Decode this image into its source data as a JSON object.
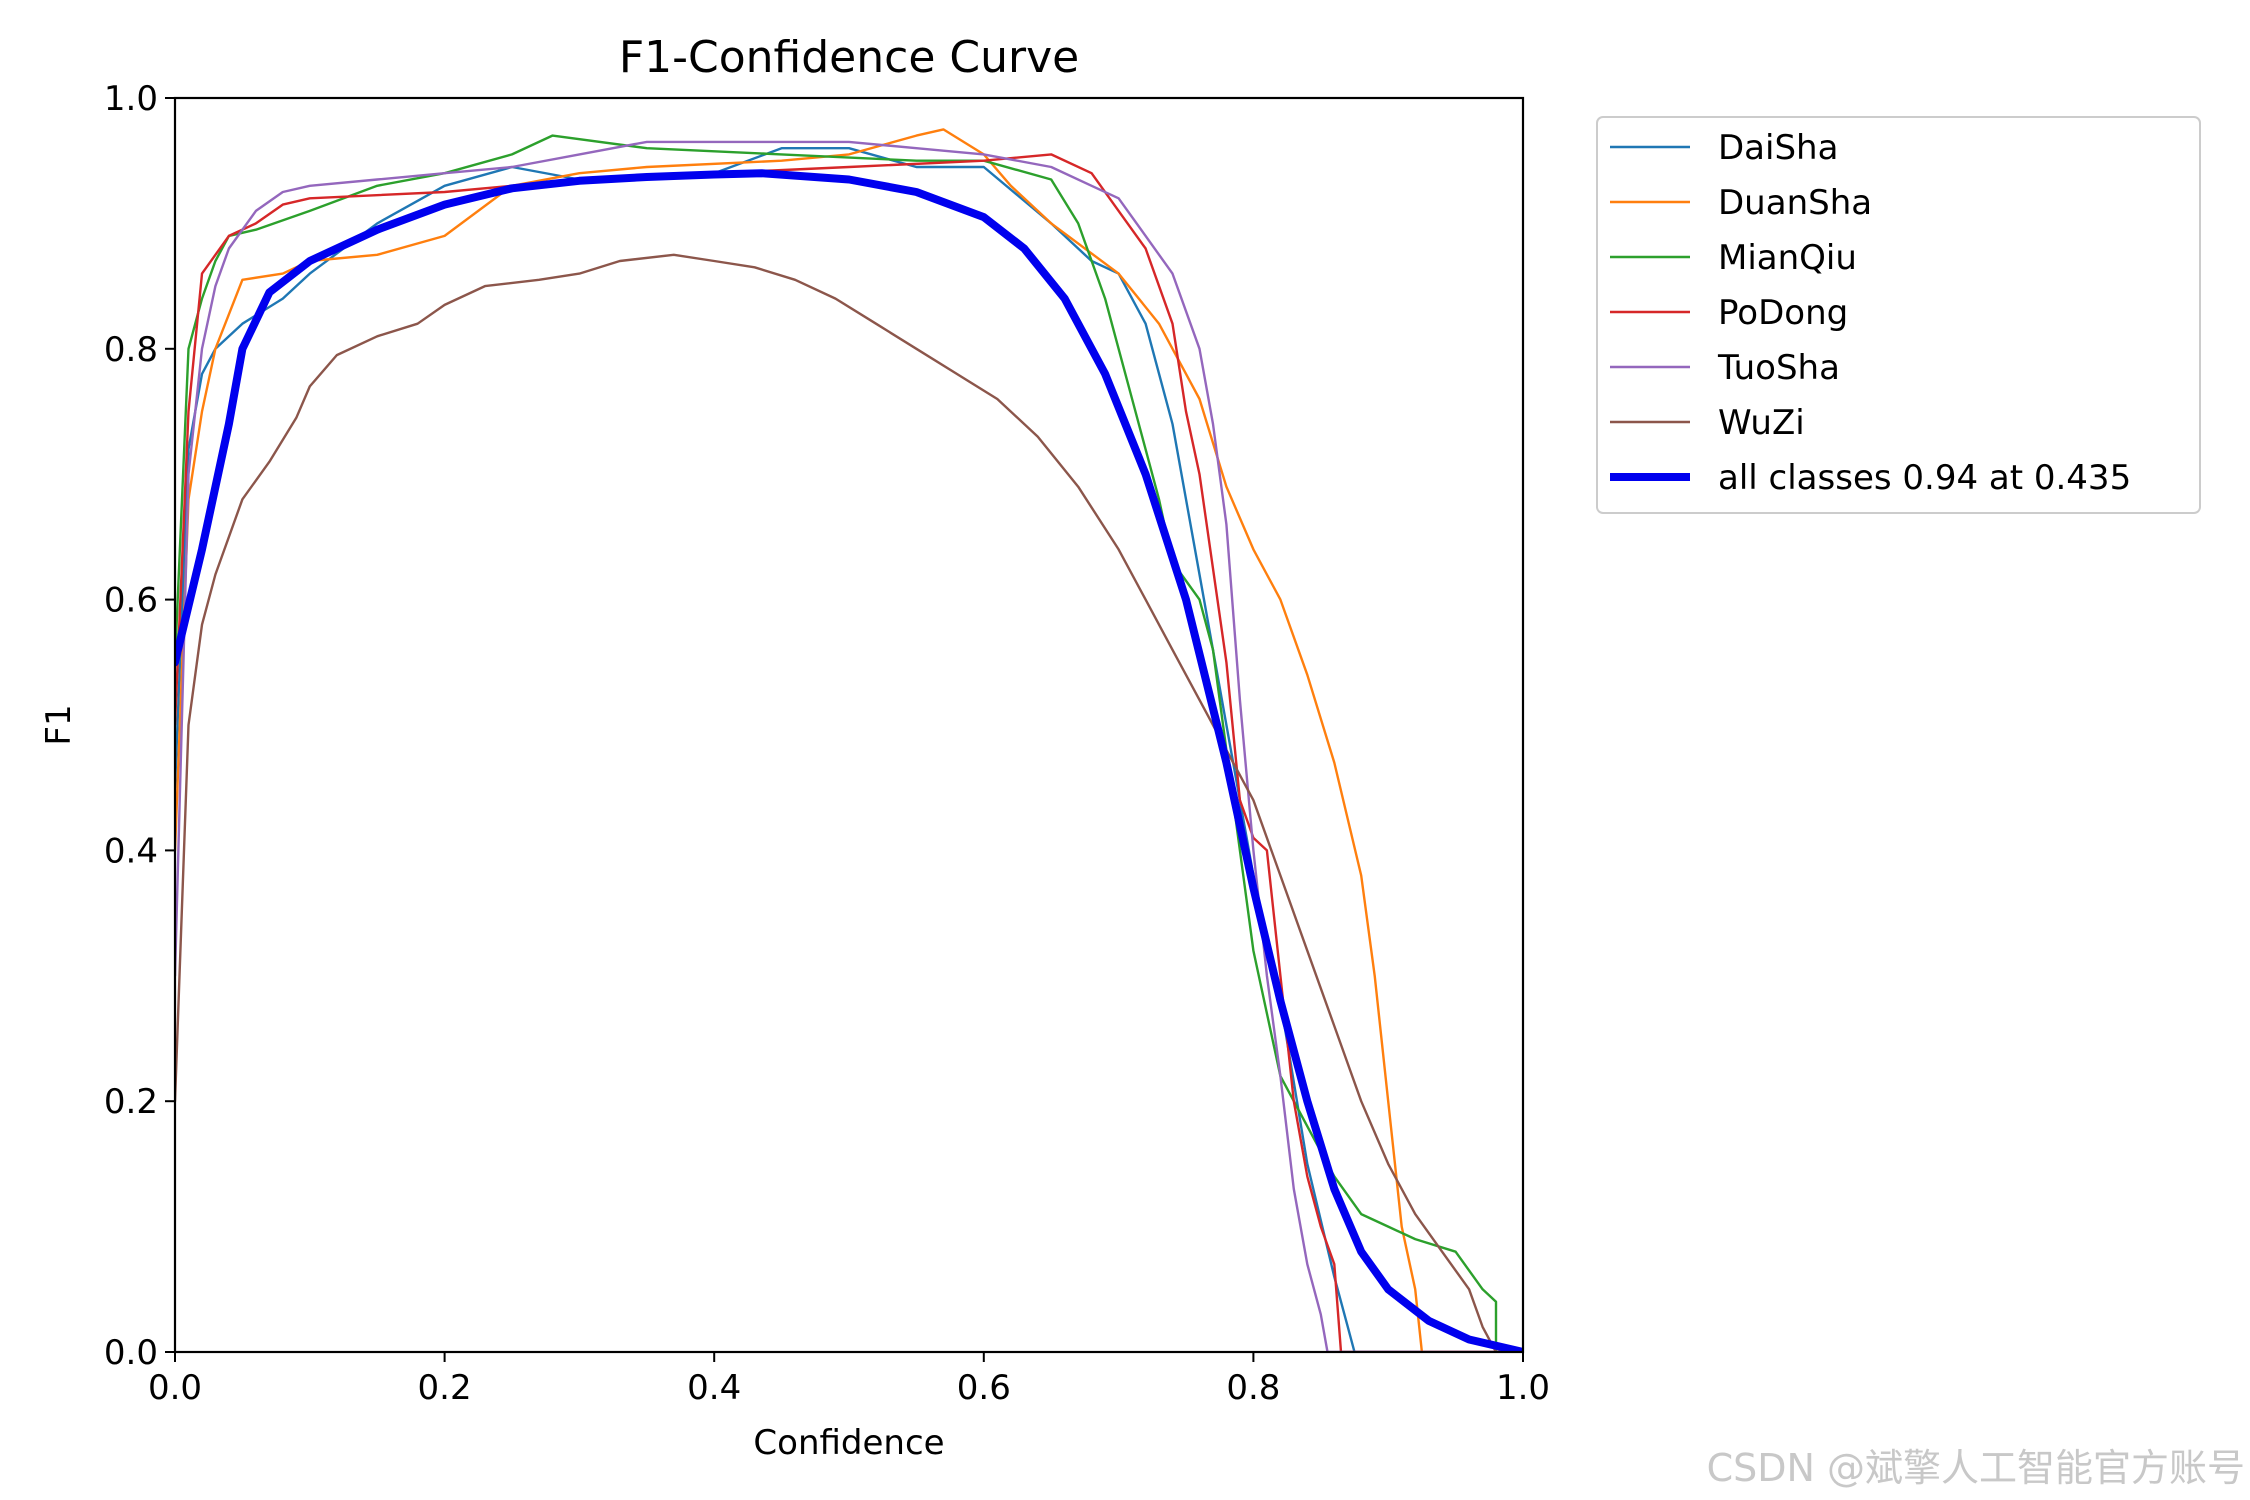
{
  "chart_data": {
    "type": "line",
    "title": "F1-Confidence Curve",
    "xlabel": "Confidence",
    "ylabel": "F1",
    "xlim": [
      0,
      1
    ],
    "ylim": [
      0,
      1
    ],
    "xticks": [
      "0.0",
      "0.2",
      "0.4",
      "0.6",
      "0.8",
      "1.0"
    ],
    "yticks": [
      "0.0",
      "0.2",
      "0.4",
      "0.6",
      "0.8",
      "1.0"
    ],
    "legend_position": "outside-right",
    "series": [
      {
        "name": "DaiSha",
        "color": "#1f77b4",
        "points": [
          [
            0,
            0.45
          ],
          [
            0.01,
            0.72
          ],
          [
            0.02,
            0.78
          ],
          [
            0.03,
            0.8
          ],
          [
            0.05,
            0.82
          ],
          [
            0.08,
            0.84
          ],
          [
            0.1,
            0.86
          ],
          [
            0.15,
            0.9
          ],
          [
            0.2,
            0.93
          ],
          [
            0.25,
            0.945
          ],
          [
            0.3,
            0.935
          ],
          [
            0.4,
            0.94
          ],
          [
            0.45,
            0.96
          ],
          [
            0.5,
            0.96
          ],
          [
            0.55,
            0.945
          ],
          [
            0.6,
            0.945
          ],
          [
            0.65,
            0.9
          ],
          [
            0.68,
            0.87
          ],
          [
            0.7,
            0.86
          ],
          [
            0.72,
            0.82
          ],
          [
            0.74,
            0.74
          ],
          [
            0.76,
            0.62
          ],
          [
            0.78,
            0.5
          ],
          [
            0.8,
            0.38
          ],
          [
            0.82,
            0.28
          ],
          [
            0.84,
            0.15
          ],
          [
            0.86,
            0.06
          ],
          [
            0.87,
            0.02
          ],
          [
            0.875,
            0.0
          ],
          [
            1,
            0.0
          ]
        ]
      },
      {
        "name": "DuanSha",
        "color": "#ff7f0e",
        "points": [
          [
            0,
            0.4
          ],
          [
            0.01,
            0.68
          ],
          [
            0.02,
            0.75
          ],
          [
            0.03,
            0.8
          ],
          [
            0.05,
            0.855
          ],
          [
            0.08,
            0.86
          ],
          [
            0.1,
            0.87
          ],
          [
            0.15,
            0.875
          ],
          [
            0.2,
            0.89
          ],
          [
            0.25,
            0.93
          ],
          [
            0.3,
            0.94
          ],
          [
            0.35,
            0.945
          ],
          [
            0.45,
            0.95
          ],
          [
            0.5,
            0.955
          ],
          [
            0.55,
            0.97
          ],
          [
            0.57,
            0.975
          ],
          [
            0.6,
            0.955
          ],
          [
            0.62,
            0.93
          ],
          [
            0.65,
            0.9
          ],
          [
            0.7,
            0.86
          ],
          [
            0.73,
            0.82
          ],
          [
            0.76,
            0.76
          ],
          [
            0.78,
            0.69
          ],
          [
            0.8,
            0.64
          ],
          [
            0.82,
            0.6
          ],
          [
            0.84,
            0.54
          ],
          [
            0.86,
            0.47
          ],
          [
            0.88,
            0.38
          ],
          [
            0.89,
            0.3
          ],
          [
            0.9,
            0.2
          ],
          [
            0.91,
            0.1
          ],
          [
            0.92,
            0.05
          ],
          [
            0.925,
            0.0
          ],
          [
            1,
            0.0
          ]
        ]
      },
      {
        "name": "MianQiu",
        "color": "#2ca02c",
        "points": [
          [
            0,
            0.55
          ],
          [
            0.01,
            0.8
          ],
          [
            0.02,
            0.84
          ],
          [
            0.03,
            0.87
          ],
          [
            0.04,
            0.89
          ],
          [
            0.06,
            0.895
          ],
          [
            0.1,
            0.91
          ],
          [
            0.15,
            0.93
          ],
          [
            0.2,
            0.94
          ],
          [
            0.25,
            0.955
          ],
          [
            0.28,
            0.97
          ],
          [
            0.35,
            0.96
          ],
          [
            0.45,
            0.955
          ],
          [
            0.55,
            0.95
          ],
          [
            0.6,
            0.95
          ],
          [
            0.65,
            0.935
          ],
          [
            0.67,
            0.9
          ],
          [
            0.69,
            0.84
          ],
          [
            0.71,
            0.76
          ],
          [
            0.73,
            0.68
          ],
          [
            0.74,
            0.63
          ],
          [
            0.76,
            0.6
          ],
          [
            0.77,
            0.56
          ],
          [
            0.78,
            0.48
          ],
          [
            0.8,
            0.32
          ],
          [
            0.82,
            0.22
          ],
          [
            0.84,
            0.18
          ],
          [
            0.86,
            0.14
          ],
          [
            0.88,
            0.11
          ],
          [
            0.9,
            0.1
          ],
          [
            0.92,
            0.09
          ],
          [
            0.95,
            0.08
          ],
          [
            0.97,
            0.05
          ],
          [
            0.98,
            0.04
          ],
          [
            0.98,
            0.0
          ],
          [
            1,
            0.0
          ]
        ]
      },
      {
        "name": "PoDong",
        "color": "#d62728",
        "points": [
          [
            0,
            0.5
          ],
          [
            0.01,
            0.75
          ],
          [
            0.02,
            0.86
          ],
          [
            0.03,
            0.875
          ],
          [
            0.04,
            0.89
          ],
          [
            0.06,
            0.9
          ],
          [
            0.08,
            0.915
          ],
          [
            0.1,
            0.92
          ],
          [
            0.2,
            0.925
          ],
          [
            0.3,
            0.935
          ],
          [
            0.4,
            0.94
          ],
          [
            0.5,
            0.945
          ],
          [
            0.6,
            0.95
          ],
          [
            0.65,
            0.955
          ],
          [
            0.68,
            0.94
          ],
          [
            0.7,
            0.91
          ],
          [
            0.72,
            0.88
          ],
          [
            0.74,
            0.82
          ],
          [
            0.75,
            0.75
          ],
          [
            0.76,
            0.7
          ],
          [
            0.78,
            0.55
          ],
          [
            0.79,
            0.44
          ],
          [
            0.8,
            0.41
          ],
          [
            0.81,
            0.4
          ],
          [
            0.82,
            0.3
          ],
          [
            0.83,
            0.2
          ],
          [
            0.84,
            0.14
          ],
          [
            0.85,
            0.1
          ],
          [
            0.86,
            0.07
          ],
          [
            0.865,
            0.0
          ],
          [
            1,
            0.0
          ]
        ]
      },
      {
        "name": "TuoSha",
        "color": "#9467bd",
        "points": [
          [
            0,
            0.3
          ],
          [
            0.01,
            0.7
          ],
          [
            0.02,
            0.8
          ],
          [
            0.03,
            0.85
          ],
          [
            0.04,
            0.88
          ],
          [
            0.06,
            0.91
          ],
          [
            0.08,
            0.925
          ],
          [
            0.1,
            0.93
          ],
          [
            0.15,
            0.935
          ],
          [
            0.2,
            0.94
          ],
          [
            0.25,
            0.945
          ],
          [
            0.3,
            0.955
          ],
          [
            0.35,
            0.965
          ],
          [
            0.4,
            0.965
          ],
          [
            0.45,
            0.965
          ],
          [
            0.5,
            0.965
          ],
          [
            0.55,
            0.96
          ],
          [
            0.6,
            0.955
          ],
          [
            0.65,
            0.945
          ],
          [
            0.68,
            0.93
          ],
          [
            0.7,
            0.92
          ],
          [
            0.72,
            0.89
          ],
          [
            0.74,
            0.86
          ],
          [
            0.76,
            0.8
          ],
          [
            0.77,
            0.74
          ],
          [
            0.78,
            0.66
          ],
          [
            0.79,
            0.52
          ],
          [
            0.8,
            0.4
          ],
          [
            0.81,
            0.3
          ],
          [
            0.82,
            0.22
          ],
          [
            0.83,
            0.13
          ],
          [
            0.84,
            0.07
          ],
          [
            0.85,
            0.03
          ],
          [
            0.855,
            0.0
          ],
          [
            1,
            0.0
          ]
        ]
      },
      {
        "name": "WuZi",
        "color": "#8c564b",
        "points": [
          [
            0,
            0.2
          ],
          [
            0.01,
            0.5
          ],
          [
            0.02,
            0.58
          ],
          [
            0.03,
            0.62
          ],
          [
            0.05,
            0.68
          ],
          [
            0.07,
            0.71
          ],
          [
            0.09,
            0.745
          ],
          [
            0.1,
            0.77
          ],
          [
            0.12,
            0.795
          ],
          [
            0.15,
            0.81
          ],
          [
            0.18,
            0.82
          ],
          [
            0.2,
            0.835
          ],
          [
            0.23,
            0.85
          ],
          [
            0.27,
            0.855
          ],
          [
            0.3,
            0.86
          ],
          [
            0.33,
            0.87
          ],
          [
            0.37,
            0.875
          ],
          [
            0.4,
            0.87
          ],
          [
            0.43,
            0.865
          ],
          [
            0.46,
            0.855
          ],
          [
            0.49,
            0.84
          ],
          [
            0.52,
            0.82
          ],
          [
            0.55,
            0.8
          ],
          [
            0.58,
            0.78
          ],
          [
            0.61,
            0.76
          ],
          [
            0.64,
            0.73
          ],
          [
            0.67,
            0.69
          ],
          [
            0.7,
            0.64
          ],
          [
            0.72,
            0.6
          ],
          [
            0.74,
            0.56
          ],
          [
            0.76,
            0.52
          ],
          [
            0.78,
            0.48
          ],
          [
            0.8,
            0.44
          ],
          [
            0.82,
            0.38
          ],
          [
            0.84,
            0.32
          ],
          [
            0.86,
            0.26
          ],
          [
            0.88,
            0.2
          ],
          [
            0.9,
            0.15
          ],
          [
            0.92,
            0.11
          ],
          [
            0.94,
            0.08
          ],
          [
            0.96,
            0.05
          ],
          [
            0.97,
            0.02
          ],
          [
            0.98,
            0.0
          ],
          [
            1,
            0.0
          ]
        ]
      },
      {
        "name": "all classes 0.94 at 0.435",
        "color": "#0000ee",
        "bold": true,
        "points": [
          [
            0,
            0.55
          ],
          [
            0.02,
            0.64
          ],
          [
            0.04,
            0.74
          ],
          [
            0.05,
            0.8
          ],
          [
            0.07,
            0.845
          ],
          [
            0.1,
            0.87
          ],
          [
            0.15,
            0.895
          ],
          [
            0.2,
            0.915
          ],
          [
            0.25,
            0.928
          ],
          [
            0.3,
            0.934
          ],
          [
            0.35,
            0.937
          ],
          [
            0.4,
            0.939
          ],
          [
            0.435,
            0.94
          ],
          [
            0.5,
            0.935
          ],
          [
            0.55,
            0.925
          ],
          [
            0.6,
            0.905
          ],
          [
            0.63,
            0.88
          ],
          [
            0.66,
            0.84
          ],
          [
            0.69,
            0.78
          ],
          [
            0.72,
            0.7
          ],
          [
            0.75,
            0.6
          ],
          [
            0.78,
            0.47
          ],
          [
            0.8,
            0.37
          ],
          [
            0.82,
            0.28
          ],
          [
            0.84,
            0.2
          ],
          [
            0.86,
            0.13
          ],
          [
            0.88,
            0.08
          ],
          [
            0.9,
            0.05
          ],
          [
            0.93,
            0.025
          ],
          [
            0.96,
            0.01
          ],
          [
            1,
            0.0
          ]
        ]
      }
    ]
  },
  "watermark": "CSDN @斌擎人工智能官方账号"
}
